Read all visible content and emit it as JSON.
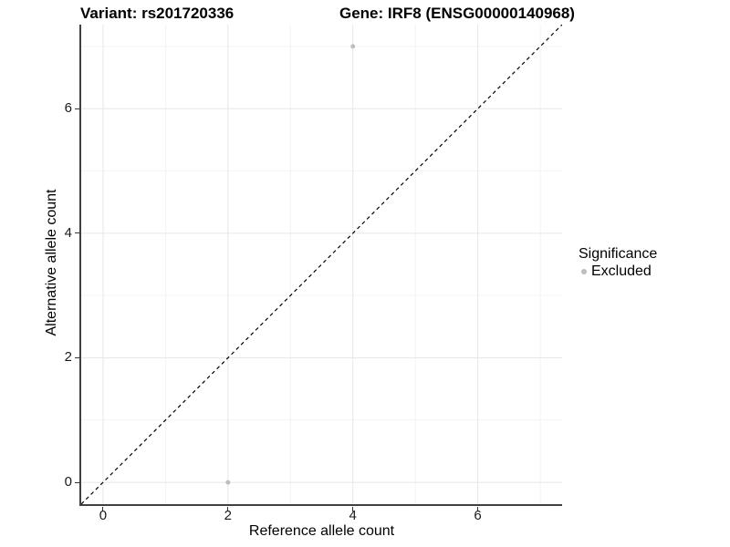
{
  "header": {
    "variant_title": "Variant: rs201720336",
    "gene_title": "Gene: IRF8 (ENSG00000140968)"
  },
  "legend": {
    "title": "Significance",
    "items": [
      {
        "label": "Excluded",
        "color": "#bebebe"
      }
    ]
  },
  "chart_data": {
    "type": "scatter",
    "title": "Variant: rs201720336 — Gene: IRF8 (ENSG00000140968)",
    "xlabel": "Reference allele count",
    "ylabel": "Alternative allele count",
    "xlim": [
      -0.35,
      7.35
    ],
    "ylim": [
      -0.35,
      7.35
    ],
    "x_major_ticks": [
      0,
      2,
      4,
      6
    ],
    "y_major_ticks": [
      0,
      2,
      4,
      6
    ],
    "x_minor_ticks": [
      1,
      3,
      5,
      7
    ],
    "y_minor_ticks": [
      1,
      3,
      5,
      7
    ],
    "grid": "major and minor gridlines on white panel",
    "legend_position": "right",
    "series": [
      {
        "name": "Excluded",
        "color": "#bebebe",
        "marker": "circle",
        "points": [
          [
            4,
            7
          ],
          [
            2,
            0
          ]
        ]
      }
    ],
    "reference_line": {
      "type": "identity y=x",
      "from": [
        -0.35,
        -0.35
      ],
      "to": [
        7.35,
        7.35
      ],
      "style": "dashed",
      "color": "#000000"
    }
  },
  "style": {
    "axis_line_color": "#404040",
    "tick_color": "#333333",
    "major_grid_color": "#e7e7e7",
    "minor_grid_color": "#f3f3f3",
    "point_color": "#bebebe",
    "background": "#ffffff"
  }
}
